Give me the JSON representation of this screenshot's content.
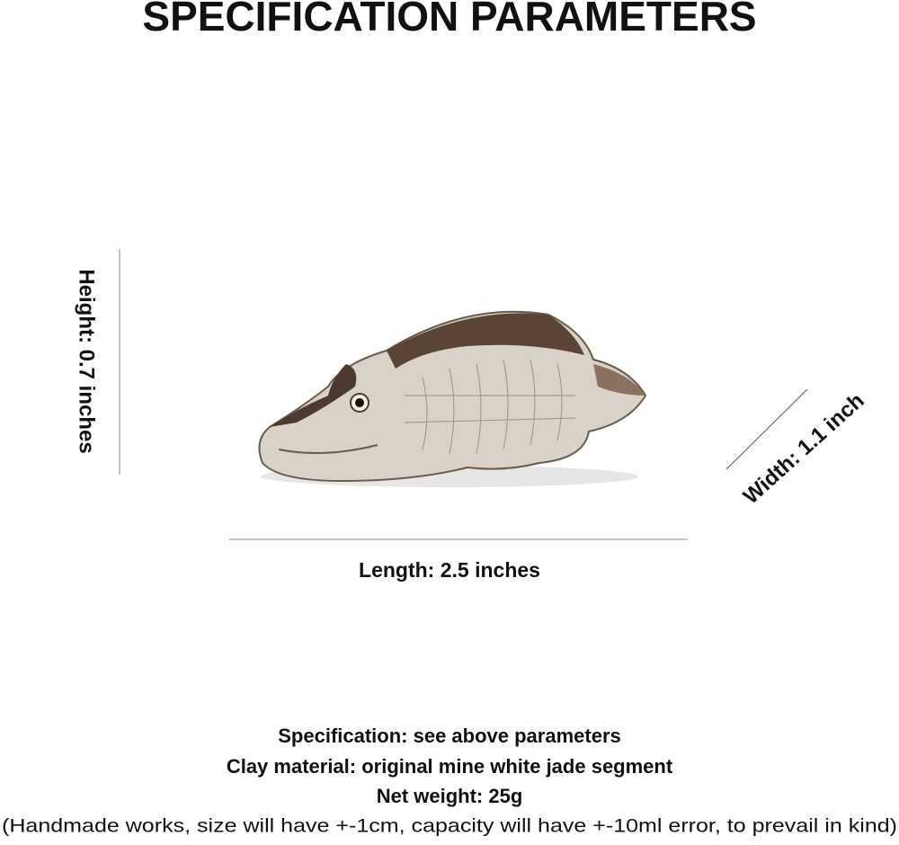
{
  "header": {
    "title": "SPECIFICATION PARAMETERS"
  },
  "dimensions": {
    "height": "Height: 0.7 inches",
    "width": "Width: 1.1 inch",
    "length": "Length: 2.5 inches"
  },
  "details": [
    "Specification: see above parameters",
    "Clay material: original mine white jade segment",
    "Net weight: 25g",
    "(Handmade works, size will have +-1cm, capacity will have +-10ml error, to prevail in kind)"
  ]
}
